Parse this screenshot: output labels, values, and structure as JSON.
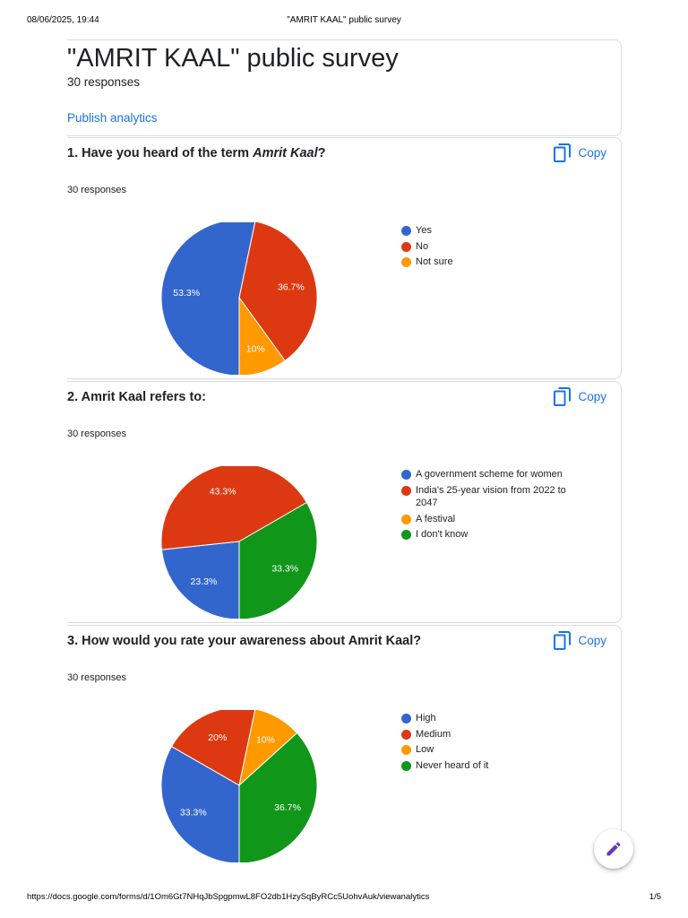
{
  "print": {
    "date": "08/06/2025, 19:44",
    "title": "\"AMRIT KAAL\" public survey",
    "url": "https://docs.google.com/forms/d/1Om6Gt7NHqJbSpgpmwL8FO2db1HzySqByRCc5UohvAuk/viewanalytics",
    "page": "1/5"
  },
  "form": {
    "title": "\"AMRIT KAAL\" public survey",
    "responses": "30 responses",
    "publish_label": "Publish analytics"
  },
  "questions": [
    {
      "number": "1.",
      "text_before": "Have you heard of the term ",
      "text_italic": "Amrit Kaal",
      "text_after": "?",
      "responses": "30 responses",
      "copy_label": "Copy"
    },
    {
      "number": "2.",
      "text_before": "Amrit Kaal refers to:",
      "text_italic": "",
      "text_after": "",
      "responses": "30 responses",
      "copy_label": "Copy"
    },
    {
      "number": "3.",
      "text_before": "How would you rate your awareness about Amrit Kaal?",
      "text_italic": "",
      "text_after": "",
      "responses": "30 responses",
      "copy_label": "Copy"
    }
  ],
  "colors": {
    "blue": "#3366cc",
    "red": "#dc3912",
    "orange": "#ff9900",
    "green": "#109618",
    "accent": "#1a73e8",
    "fab_icon": "#673ab7"
  },
  "chart_data": [
    {
      "type": "pie",
      "categories": [
        "Yes",
        "No",
        "Not sure"
      ],
      "values": [
        53.3,
        36.7,
        10
      ],
      "labels": [
        "53.3%",
        "36.7%",
        "10%"
      ],
      "colors": [
        "#3366cc",
        "#dc3912",
        "#ff9900"
      ],
      "legend": "right"
    },
    {
      "type": "pie",
      "categories": [
        "A government scheme for women",
        "India's 25-year vision from 2022 to 2047",
        "A festival",
        "I don't know"
      ],
      "values": [
        23.3,
        43.3,
        0,
        33.3
      ],
      "labels": [
        "23.3%",
        "43.3%",
        "",
        "33.3%"
      ],
      "colors": [
        "#3366cc",
        "#dc3912",
        "#ff9900",
        "#109618"
      ],
      "legend": "right"
    },
    {
      "type": "pie",
      "categories": [
        "High",
        "Medium",
        "Low",
        "Never heard of it"
      ],
      "values": [
        33.3,
        20,
        10,
        36.7
      ],
      "labels": [
        "33.3%",
        "20%",
        "10%",
        "36.7%"
      ],
      "colors": [
        "#3366cc",
        "#dc3912",
        "#ff9900",
        "#109618"
      ],
      "legend": "right"
    }
  ],
  "icons": {
    "copy": "copy-icon",
    "edit": "pencil-icon"
  }
}
